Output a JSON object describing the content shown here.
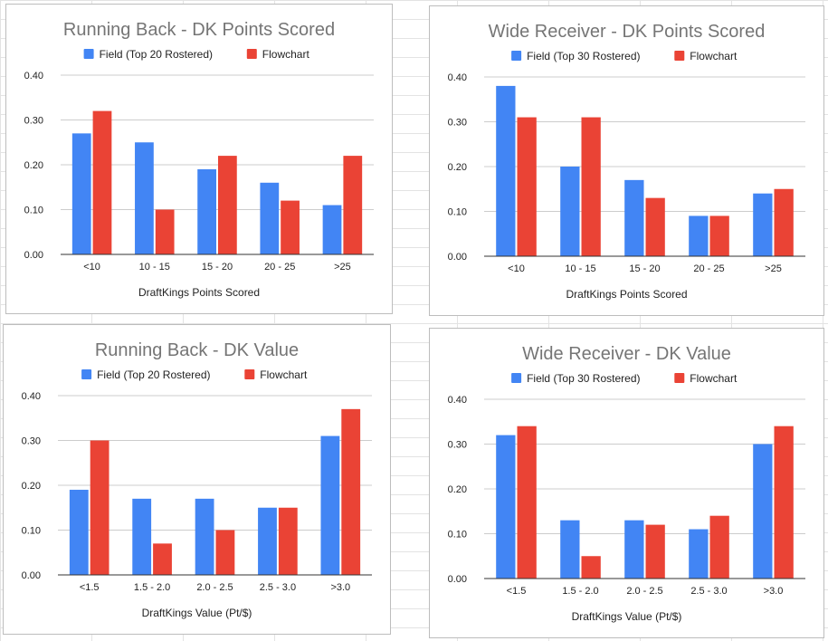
{
  "colors": {
    "field": "#4285f4",
    "flowchart": "#ea4335",
    "grid": "#cccccc",
    "axis": "#333333"
  },
  "chart_data": [
    {
      "type": "bar",
      "title": "Running Back - DK Points Scored",
      "xlabel": "DraftKings Points Scored",
      "ylabel": "",
      "categories": [
        "<10",
        "10 - 15",
        "15 - 20",
        "20 - 25",
        ">25"
      ],
      "series": [
        {
          "name": "Field (Top 20 Rostered)",
          "values": [
            0.27,
            0.25,
            0.19,
            0.16,
            0.11
          ]
        },
        {
          "name": "Flowchart",
          "values": [
            0.32,
            0.1,
            0.22,
            0.12,
            0.22
          ]
        }
      ],
      "ylim": [
        0,
        0.4
      ],
      "yticks": [
        "0.00",
        "0.10",
        "0.20",
        "0.30",
        "0.40"
      ],
      "legend": "top",
      "grid": true
    },
    {
      "type": "bar",
      "title": "Wide Receiver - DK Points Scored",
      "xlabel": "DraftKings Points Scored",
      "ylabel": "",
      "categories": [
        "<10",
        "10 - 15",
        "15 - 20",
        "20 - 25",
        ">25"
      ],
      "series": [
        {
          "name": "Field (Top 30 Rostered)",
          "values": [
            0.38,
            0.2,
            0.17,
            0.09,
            0.14
          ]
        },
        {
          "name": "Flowchart",
          "values": [
            0.31,
            0.31,
            0.13,
            0.09,
            0.15
          ]
        }
      ],
      "ylim": [
        0,
        0.4
      ],
      "yticks": [
        "0.00",
        "0.10",
        "0.20",
        "0.30",
        "0.40"
      ],
      "legend": "top",
      "grid": true
    },
    {
      "type": "bar",
      "title": "Running Back - DK Value",
      "xlabel": "DraftKings Value (Pt/$)",
      "ylabel": "",
      "categories": [
        "<1.5",
        "1.5 - 2.0",
        "2.0 - 2.5",
        "2.5 - 3.0",
        ">3.0"
      ],
      "series": [
        {
          "name": "Field (Top 20 Rostered)",
          "values": [
            0.19,
            0.17,
            0.17,
            0.15,
            0.31
          ]
        },
        {
          "name": "Flowchart",
          "values": [
            0.3,
            0.07,
            0.1,
            0.15,
            0.37
          ]
        }
      ],
      "ylim": [
        0,
        0.4
      ],
      "yticks": [
        "0.00",
        "0.10",
        "0.20",
        "0.30",
        "0.40"
      ],
      "legend": "top",
      "grid": true
    },
    {
      "type": "bar",
      "title": "Wide Receiver - DK Value",
      "xlabel": "DraftKings Value (Pt/$)",
      "ylabel": "",
      "categories": [
        "<1.5",
        "1.5 - 2.0",
        "2.0 - 2.5",
        "2.5 - 3.0",
        ">3.0"
      ],
      "series": [
        {
          "name": "Field (Top 30 Rostered)",
          "values": [
            0.32,
            0.13,
            0.13,
            0.11,
            0.3
          ]
        },
        {
          "name": "Flowchart",
          "values": [
            0.34,
            0.05,
            0.12,
            0.14,
            0.34
          ]
        }
      ],
      "ylim": [
        0,
        0.4
      ],
      "yticks": [
        "0.00",
        "0.10",
        "0.20",
        "0.30",
        "0.40"
      ],
      "legend": "top",
      "grid": true
    }
  ]
}
